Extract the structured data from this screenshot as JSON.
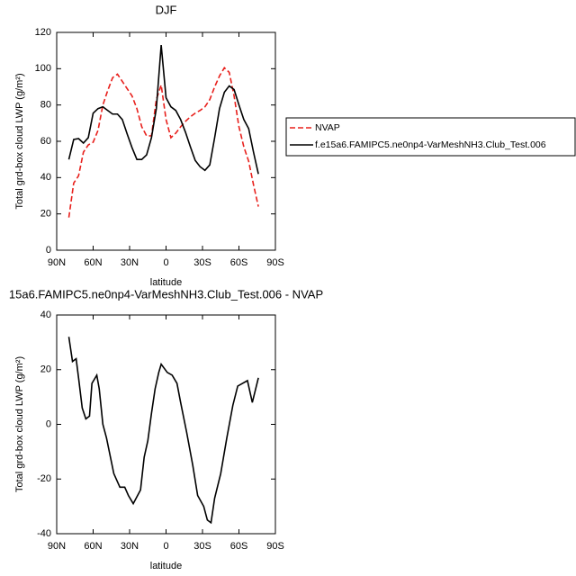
{
  "chart_data": [
    {
      "type": "line",
      "title": "DJF",
      "xlabel": "latitude",
      "ylabel": "Total grd-box cloud LWP (g/m²)",
      "x": [
        80,
        76,
        72,
        68,
        64,
        60,
        56,
        52,
        48,
        44,
        40,
        36,
        32,
        28,
        24,
        20,
        16,
        12,
        8,
        4,
        0,
        -4,
        -8,
        -12,
        -16,
        -20,
        -24,
        -28,
        -32,
        -36,
        -40,
        -44,
        -48,
        -52,
        -56,
        -60,
        -64,
        -68,
        -72,
        -76
      ],
      "series": [
        {
          "name": "NVAP",
          "color": "#e8201c",
          "line_style": "dashed",
          "values": [
            18,
            37,
            41,
            54,
            58,
            59.5,
            66,
            80,
            88,
            95,
            97,
            93,
            89,
            85,
            78,
            68,
            63,
            63,
            83,
            91,
            72,
            62,
            64.5,
            68,
            71,
            73.5,
            75.5,
            77,
            79,
            83,
            90,
            96,
            100.5,
            98,
            85,
            68,
            57,
            49,
            36,
            24
          ]
        },
        {
          "name": "f.e15a6.FAMIPC5.ne0np4-VarMeshNH3.Club_Test.006",
          "color": "#000000",
          "line_style": "solid",
          "values": [
            50,
            61,
            61.5,
            59,
            62,
            75.5,
            78,
            79,
            77,
            75,
            75,
            72,
            64,
            56.5,
            50,
            50,
            52.5,
            62,
            78,
            113,
            84,
            79,
            77,
            72,
            65,
            57,
            49.5,
            46,
            44,
            47,
            62,
            78,
            87,
            90.5,
            88.5,
            80,
            72,
            67,
            54,
            42
          ]
        }
      ],
      "xlim": [
        90,
        -90
      ],
      "xticks": [
        {
          "value": 90,
          "label": "90N"
        },
        {
          "value": 60,
          "label": "60N"
        },
        {
          "value": 30,
          "label": "30N"
        },
        0,
        {
          "value": -30,
          "label": "30S"
        },
        {
          "value": -60,
          "label": "60S"
        },
        {
          "value": -90,
          "label": "90S"
        }
      ],
      "ylim": [
        0,
        120
      ],
      "yticks": [
        0,
        20,
        40,
        60,
        80,
        100,
        120
      ],
      "legend": "right"
    },
    {
      "type": "line",
      "title": "15a6.FAMIPC5.ne0np4-VarMeshNH3.Club_Test.006 - NVAP",
      "xlabel": "latitude",
      "ylabel": "Total grd-box cloud LWP (g/m²)",
      "x": [
        80,
        77,
        74,
        72,
        69,
        66,
        63,
        61,
        57,
        55,
        52,
        49,
        43,
        38,
        34,
        31,
        27,
        21,
        18,
        15,
        12,
        9,
        6,
        4,
        -1,
        -5,
        -9,
        -12,
        -17,
        -22,
        -26,
        -31,
        -34,
        -37,
        -40,
        -45,
        -50,
        -55,
        -59,
        -67,
        -71,
        -76
      ],
      "series": [
        {
          "color": "#000000",
          "line_style": "solid",
          "values": [
            32,
            23,
            24,
            17,
            6,
            2,
            3,
            15,
            18,
            13,
            0,
            -5,
            -18,
            -23,
            -23,
            -26,
            -29,
            -24,
            -12,
            -6,
            4,
            13,
            19,
            22,
            19,
            18,
            15,
            8,
            -3,
            -15,
            -26,
            -30,
            -35,
            -36,
            -27,
            -18,
            -5,
            7,
            14,
            16,
            8,
            17
          ]
        }
      ],
      "xlim": [
        90,
        -90
      ],
      "xticks": [
        {
          "value": 90,
          "label": "90N"
        },
        {
          "value": 60,
          "label": "60N"
        },
        {
          "value": 30,
          "label": "30N"
        },
        0,
        {
          "value": -30,
          "label": "30S"
        },
        {
          "value": -60,
          "label": "60S"
        },
        {
          "value": -90,
          "label": "90S"
        }
      ],
      "ylim": [
        -40,
        40
      ],
      "yticks": [
        -40,
        -20,
        0,
        20,
        40
      ]
    }
  ]
}
